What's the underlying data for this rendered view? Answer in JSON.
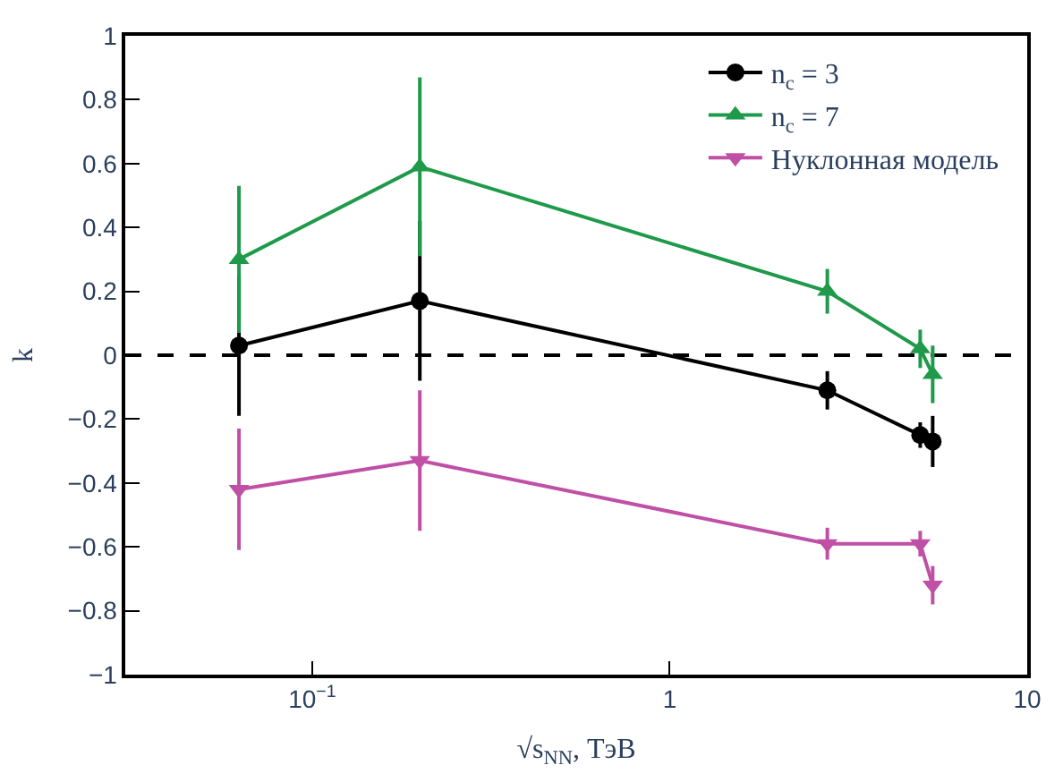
{
  "chart_data": {
    "type": "line",
    "xlabel": "√s$_{NN}$, ТэВ",
    "ylabel": "k",
    "log": "x",
    "grid": false,
    "legend": "top right",
    "x": [
      0.0624,
      0.2,
      2.76,
      5.02,
      5.44
    ],
    "series": [
      {
        "name": "n$_{c}$ = 3",
        "color": "#000000",
        "marker": "circle",
        "values": [
          0.03,
          0.17,
          -0.11,
          -0.25,
          -0.27
        ],
        "errors": [
          0.22,
          0.25,
          0.06,
          0.04,
          0.08
        ]
      },
      {
        "name": "n$_{c}$ = 7",
        "color": "#1f9a4a",
        "marker": "triangle",
        "values": [
          0.3,
          0.59,
          0.2,
          0.02,
          -0.06
        ],
        "errors": [
          0.23,
          0.28,
          0.07,
          0.06,
          0.09
        ]
      },
      {
        "name": "Нуклонная модель",
        "color": "#c04fa6",
        "marker": "triangle-down",
        "values": [
          -0.42,
          -0.33,
          -0.59,
          -0.59,
          -0.72
        ],
        "errors": [
          0.19,
          0.22,
          0.05,
          0.04,
          0.06
        ]
      }
    ],
    "xlim": [
      0.03,
      10
    ],
    "xticks": [
      {
        "value": 0.1,
        "label": "10$^{−1}$"
      },
      1,
      10
    ],
    "ylim": [
      -1,
      1
    ],
    "yticks": [
      {
        "value": -1,
        "label": "−1"
      },
      {
        "value": -0.8,
        "label": "−0.8"
      },
      {
        "value": -0.6,
        "label": "−0.6"
      },
      {
        "value": -0.4,
        "label": "−0.4"
      },
      {
        "value": -0.2,
        "label": "−0.2"
      },
      0,
      0.2,
      0.4,
      0.6,
      0.8,
      1
    ],
    "ref_lines": [
      {
        "axis": "y",
        "value": 0,
        "color": "#000000",
        "line_style": "dashed"
      }
    ]
  }
}
